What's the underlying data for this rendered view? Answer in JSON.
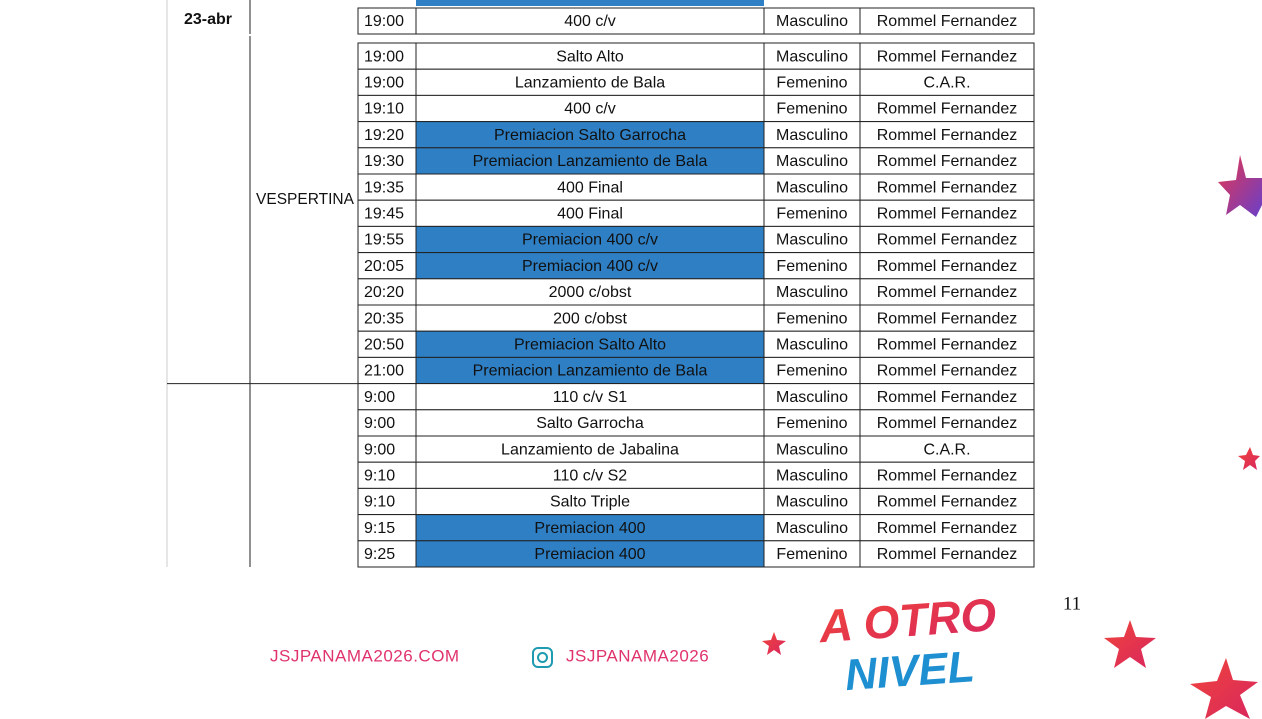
{
  "table": {
    "date": "23-abr",
    "session": "VESPERTINA",
    "first_row": {
      "time": "19:00",
      "event": "400 c/v",
      "gender": "Masculino",
      "venue": "Rommel Fernandez",
      "highlight": false
    },
    "rows": [
      {
        "time": "19:00",
        "event": "Salto Alto",
        "gender": "Masculino",
        "venue": "Rommel Fernandez",
        "highlight": false
      },
      {
        "time": "19:00",
        "event": "Lanzamiento de Bala",
        "gender": "Femenino",
        "venue": "C.A.R.",
        "highlight": false
      },
      {
        "time": "19:10",
        "event": "400 c/v",
        "gender": "Femenino",
        "venue": "Rommel Fernandez",
        "highlight": false
      },
      {
        "time": "19:20",
        "event": "Premiacion Salto Garrocha",
        "gender": "Masculino",
        "venue": "Rommel Fernandez",
        "highlight": true
      },
      {
        "time": "19:30",
        "event": "Premiacion Lanzamiento de Bala",
        "gender": "Masculino",
        "venue": "Rommel Fernandez",
        "highlight": true
      },
      {
        "time": "19:35",
        "event": "400 Final",
        "gender": "Masculino",
        "venue": "Rommel Fernandez",
        "highlight": false
      },
      {
        "time": "19:45",
        "event": "400 Final",
        "gender": "Femenino",
        "venue": "Rommel Fernandez",
        "highlight": false
      },
      {
        "time": "19:55",
        "event": "Premiacion 400 c/v",
        "gender": "Masculino",
        "venue": "Rommel Fernandez",
        "highlight": true
      },
      {
        "time": "20:05",
        "event": "Premiacion 400 c/v",
        "gender": "Femenino",
        "venue": "Rommel Fernandez",
        "highlight": true
      },
      {
        "time": "20:20",
        "event": "2000 c/obst",
        "gender": "Masculino",
        "venue": "Rommel Fernandez",
        "highlight": false
      },
      {
        "time": "20:35",
        "event": "200 c/obst",
        "gender": "Femenino",
        "venue": "Rommel Fernandez",
        "highlight": false
      },
      {
        "time": "20:50",
        "event": "Premiacion Salto Alto",
        "gender": "Masculino",
        "venue": "Rommel Fernandez",
        "highlight": true
      },
      {
        "time": "21:00",
        "event": "Premiacion Lanzamiento de Bala",
        "gender": "Femenino",
        "venue": "Rommel Fernandez",
        "highlight": true
      },
      {
        "time": "9:00",
        "event": "110 c/v S1",
        "gender": "Masculino",
        "venue": "Rommel Fernandez",
        "highlight": false
      },
      {
        "time": "9:00",
        "event": "Salto Garrocha",
        "gender": "Femenino",
        "venue": "Rommel Fernandez",
        "highlight": false
      },
      {
        "time": "9:00",
        "event": "Lanzamiento de Jabalina",
        "gender": "Masculino",
        "venue": "C.A.R.",
        "highlight": false
      },
      {
        "time": "9:10",
        "event": "110 c/v S2",
        "gender": "Masculino",
        "venue": "Rommel Fernandez",
        "highlight": false
      },
      {
        "time": "9:10",
        "event": "Salto Triple",
        "gender": "Masculino",
        "venue": "Rommel Fernandez",
        "highlight": false
      },
      {
        "time": "9:15",
        "event": "Premiacion 400",
        "gender": "Masculino",
        "venue": "Rommel Fernandez",
        "highlight": true
      },
      {
        "time": "9:25",
        "event": "Premiacion 400",
        "gender": "Femenino",
        "venue": "Rommel Fernandez",
        "highlight": true
      }
    ]
  },
  "footer": {
    "website": "JSJPANAMA2026.COM",
    "instagram": "JSJPANAMA2026",
    "page_number": "11",
    "logo_line1": "A OTRO",
    "logo_line2": "NIVEL"
  }
}
